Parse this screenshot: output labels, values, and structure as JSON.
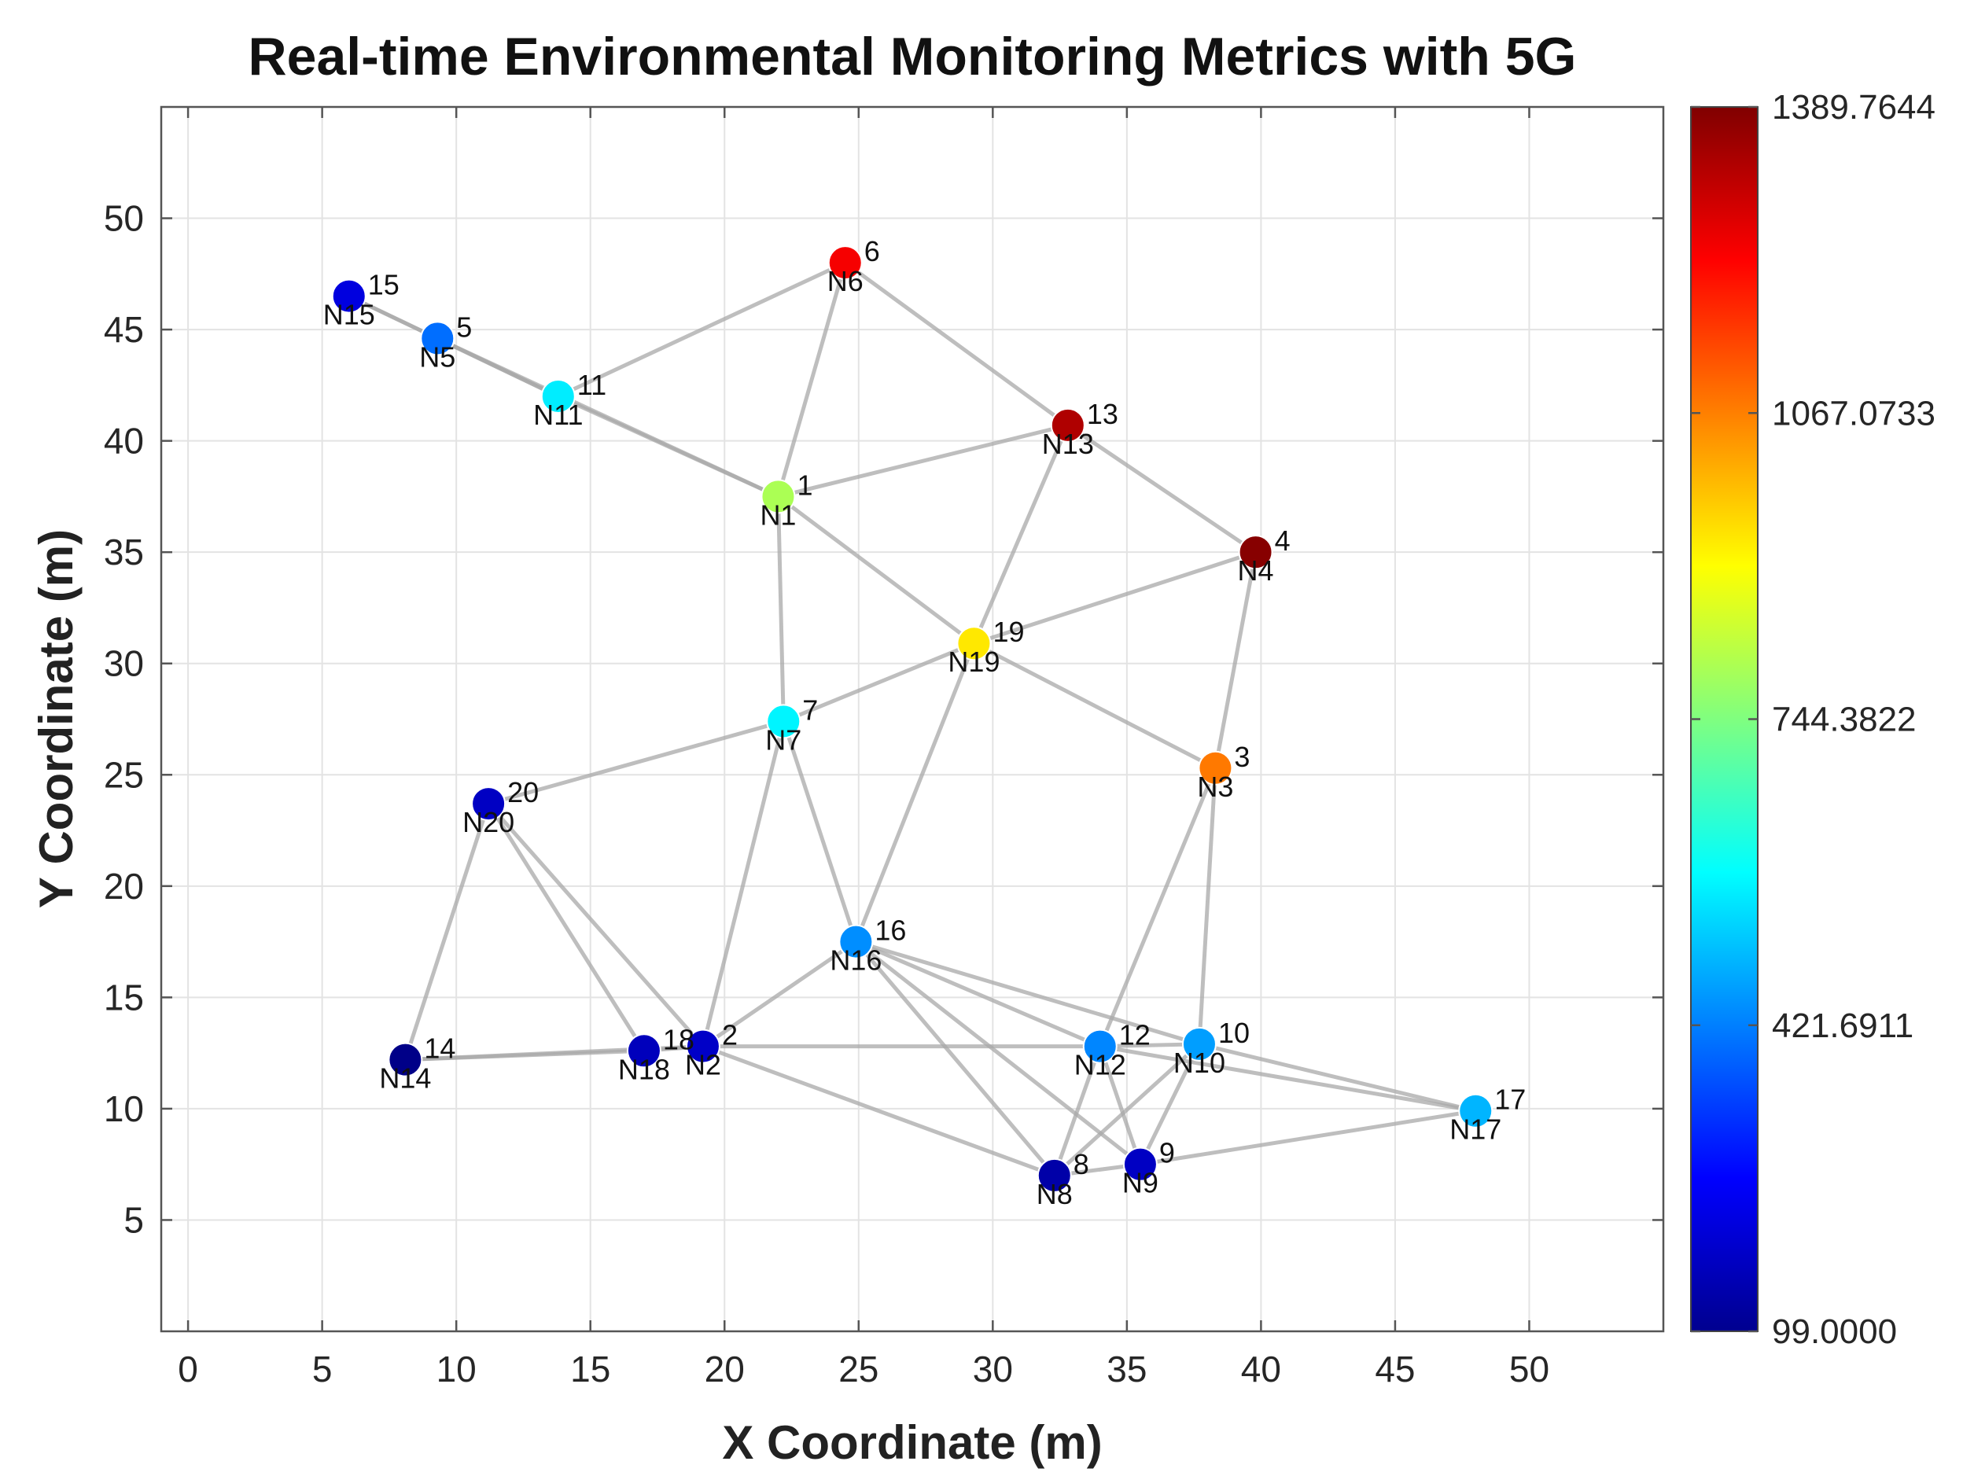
{
  "chart_data": {
    "type": "scatter",
    "title": "Real-time Environmental Monitoring Metrics with 5G",
    "xlabel": "X Coordinate (m)",
    "ylabel": "Y Coordinate (m)",
    "xlim": [
      -1,
      55
    ],
    "ylim": [
      0,
      55
    ],
    "xticks": [
      0,
      5,
      10,
      15,
      20,
      25,
      30,
      35,
      40,
      45,
      50
    ],
    "yticks": [
      5,
      10,
      15,
      20,
      25,
      30,
      35,
      40,
      45,
      50
    ],
    "grid": true,
    "colorbar": {
      "colormap": "jet",
      "min": 99.0,
      "max": 1389.7644,
      "tick_values": [
        99.0,
        421.6911,
        744.3822,
        1067.0733,
        1389.7644
      ],
      "tick_labels": [
        "99.0000",
        "421.6911",
        "744.3822",
        "1067.0733",
        "1389.7644"
      ]
    },
    "nodes": [
      {
        "id": "1",
        "name": "N1",
        "x": 22.0,
        "y": 37.5,
        "value": 800
      },
      {
        "id": "2",
        "name": "N2",
        "x": 19.2,
        "y": 12.8,
        "value": 190
      },
      {
        "id": "3",
        "name": "N3",
        "x": 38.3,
        "y": 25.3,
        "value": 1075
      },
      {
        "id": "4",
        "name": "N4",
        "x": 39.8,
        "y": 35.0,
        "value": 1380
      },
      {
        "id": "5",
        "name": "N5",
        "x": 9.3,
        "y": 44.6,
        "value": 400
      },
      {
        "id": "6",
        "name": "N6",
        "x": 24.5,
        "y": 48.0,
        "value": 1240
      },
      {
        "id": "7",
        "name": "N7",
        "x": 22.2,
        "y": 27.4,
        "value": 570
      },
      {
        "id": "8",
        "name": "N8",
        "x": 32.3,
        "y": 7.0,
        "value": 150
      },
      {
        "id": "9",
        "name": "N9",
        "x": 35.5,
        "y": 7.5,
        "value": 185
      },
      {
        "id": "10",
        "name": "N10",
        "x": 37.7,
        "y": 12.9,
        "value": 460
      },
      {
        "id": "11",
        "name": "N11",
        "x": 13.8,
        "y": 42.0,
        "value": 560
      },
      {
        "id": "12",
        "name": "N12",
        "x": 34.0,
        "y": 12.8,
        "value": 430
      },
      {
        "id": "13",
        "name": "N13",
        "x": 32.8,
        "y": 40.7,
        "value": 1330
      },
      {
        "id": "14",
        "name": "N14",
        "x": 8.1,
        "y": 12.2,
        "value": 110
      },
      {
        "id": "15",
        "name": "N15",
        "x": 6.0,
        "y": 46.5,
        "value": 220
      },
      {
        "id": "16",
        "name": "N16",
        "x": 24.9,
        "y": 17.5,
        "value": 440
      },
      {
        "id": "17",
        "name": "N17",
        "x": 48.0,
        "y": 9.9,
        "value": 490
      },
      {
        "id": "18",
        "name": "N18",
        "x": 17.0,
        "y": 12.6,
        "value": 175
      },
      {
        "id": "19",
        "name": "N19",
        "x": 29.3,
        "y": 30.9,
        "value": 935
      },
      {
        "id": "20",
        "name": "N20",
        "x": 11.2,
        "y": 23.7,
        "value": 185
      }
    ],
    "edges": [
      [
        "15",
        "5"
      ],
      [
        "15",
        "11"
      ],
      [
        "5",
        "11"
      ],
      [
        "11",
        "1"
      ],
      [
        "5",
        "1"
      ],
      [
        "11",
        "6"
      ],
      [
        "6",
        "1"
      ],
      [
        "6",
        "13"
      ],
      [
        "1",
        "13"
      ],
      [
        "13",
        "4"
      ],
      [
        "13",
        "19"
      ],
      [
        "1",
        "19"
      ],
      [
        "1",
        "7"
      ],
      [
        "19",
        "4"
      ],
      [
        "19",
        "7"
      ],
      [
        "19",
        "3"
      ],
      [
        "19",
        "16"
      ],
      [
        "4",
        "3"
      ],
      [
        "7",
        "20"
      ],
      [
        "7",
        "2"
      ],
      [
        "7",
        "16"
      ],
      [
        "20",
        "14"
      ],
      [
        "20",
        "18"
      ],
      [
        "20",
        "2"
      ],
      [
        "14",
        "18"
      ],
      [
        "14",
        "2"
      ],
      [
        "18",
        "2"
      ],
      [
        "2",
        "16"
      ],
      [
        "2",
        "12"
      ],
      [
        "2",
        "8"
      ],
      [
        "16",
        "12"
      ],
      [
        "16",
        "10"
      ],
      [
        "16",
        "8"
      ],
      [
        "16",
        "9"
      ],
      [
        "3",
        "12"
      ],
      [
        "3",
        "10"
      ],
      [
        "12",
        "10"
      ],
      [
        "12",
        "8"
      ],
      [
        "12",
        "9"
      ],
      [
        "10",
        "17"
      ],
      [
        "10",
        "8"
      ],
      [
        "10",
        "9"
      ],
      [
        "12",
        "17"
      ],
      [
        "17",
        "9"
      ],
      [
        "8",
        "9"
      ]
    ]
  }
}
